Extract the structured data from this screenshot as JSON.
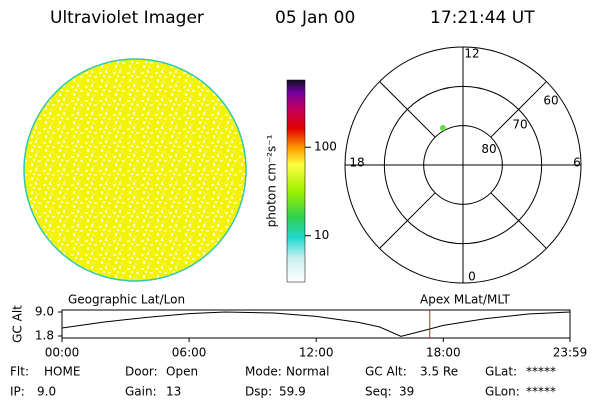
{
  "header": {
    "instrument": "Ultraviolet Imager",
    "date": "05 Jan 00",
    "time": "17:21:44 UT"
  },
  "colorbar": {
    "label": "photon cm⁻²s⁻¹",
    "scale": "log",
    "clim": [
      3,
      575
    ],
    "ticks": [
      100,
      10
    ]
  },
  "polar": {
    "rlim": [
      90,
      60
    ],
    "rings": [
      80,
      70,
      60
    ],
    "hours": [
      12,
      18,
      6,
      0
    ],
    "point": {
      "mlat": 79.3,
      "mlt": 13.9,
      "color": "#66dd44"
    }
  },
  "chart_data": {
    "type": "line",
    "ylabel": "GC Alt",
    "left_label": "Geographic Lat/Lon",
    "right_label": "Apex MLat/MLT",
    "x": [
      0,
      2,
      4,
      6,
      7.7,
      10,
      12,
      14,
      15,
      16,
      17,
      18,
      20,
      22,
      23.98
    ],
    "values": [
      4.2,
      6.0,
      7.4,
      8.5,
      9.0,
      8.7,
      7.7,
      5.9,
      4.5,
      1.7,
      3.3,
      5.0,
      7.0,
      8.4,
      9.0
    ],
    "color": "#000000",
    "marker_x": 17.36,
    "marker_color": "#cc2222",
    "xlim": [
      0,
      23.98
    ],
    "ylim": [
      1.8,
      9
    ],
    "xticks": [
      {
        "value": 0,
        "label": "00:00"
      },
      {
        "value": 6,
        "label": "06:00"
      },
      {
        "value": 12,
        "label": "12:00"
      },
      {
        "value": 18,
        "label": "18:00"
      },
      {
        "value": 23.98,
        "label": "23:59"
      }
    ],
    "yticks": [
      {
        "value": 9,
        "label": "9.0"
      },
      1.8
    ]
  },
  "footer": {
    "rows": [
      [
        [
          "Flt:",
          "HOME"
        ],
        [
          "Door:",
          "Open"
        ],
        [
          "Mode:",
          "Normal"
        ],
        [
          "GC Alt:",
          "3.5 Re"
        ],
        [
          "GLat:",
          "*****"
        ]
      ],
      [
        [
          "IP:",
          "9.0"
        ],
        [
          "Gain:",
          "13"
        ],
        [
          "Dsp:",
          "59.9"
        ],
        [
          "Seq:",
          "39"
        ],
        [
          "GLon:",
          "*****"
        ]
      ]
    ]
  }
}
